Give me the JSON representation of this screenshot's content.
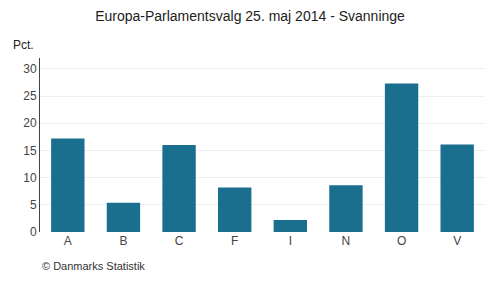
{
  "chart_data": {
    "type": "bar",
    "title": "Europa-Parlamentsvalg 25. maj 2014 - Svanninge",
    "ylabel": "Pct.",
    "annotations": [
      "© Danmarks Statistik"
    ],
    "categories": [
      "A",
      "B",
      "C",
      "F",
      "I",
      "N",
      "O",
      "V"
    ],
    "values": [
      17.2,
      5.4,
      16.0,
      8.2,
      2.2,
      8.6,
      27.3,
      16.1
    ],
    "color": "#1a6e8e",
    "ylim": [
      0,
      32
    ],
    "yticks": [
      0,
      5,
      10,
      15,
      20,
      25,
      30
    ],
    "grid": true
  }
}
